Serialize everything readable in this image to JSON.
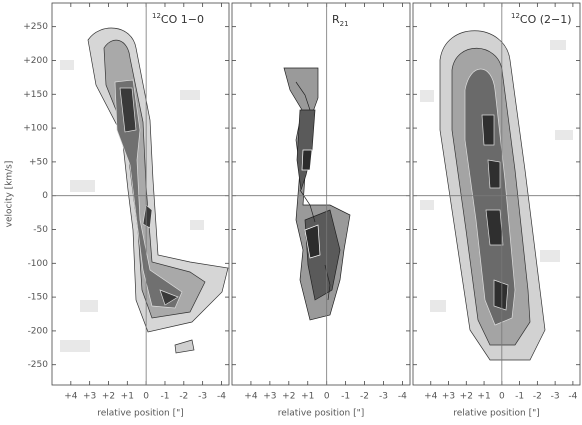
{
  "chart_data": [
    {
      "type": "image",
      "title": {
        "sup": "12",
        "main": "CO 1−0"
      },
      "ylabel": "velocity [km/s]",
      "xlabel": "relative position [\"]",
      "ylim": [
        -280,
        285
      ],
      "yticks": [
        -250,
        -200,
        -150,
        -100,
        -50,
        0,
        {
          "value": 50,
          "label": "+50"
        },
        {
          "value": 100,
          "label": "+100"
        },
        {
          "value": 150,
          "label": "+150"
        },
        {
          "value": 200,
          "label": "+200"
        },
        {
          "value": 250,
          "label": "+250"
        }
      ],
      "xlim": [
        5,
        -4.4
      ],
      "xticks": [
        {
          "value": 4,
          "label": "+4"
        },
        {
          "value": 3,
          "label": "+3"
        },
        {
          "value": 2,
          "label": "+2"
        },
        {
          "value": 1,
          "label": "+1"
        },
        0,
        -1,
        -2,
        -3,
        -4
      ]
    },
    {
      "type": "image",
      "title": {
        "main": "R",
        "sub": "21"
      },
      "xlabel": "relative position [\"]",
      "xlim": [
        5,
        -4.4
      ],
      "xticks": [
        {
          "value": 4,
          "label": "+4"
        },
        {
          "value": 3,
          "label": "+3"
        },
        {
          "value": 2,
          "label": "+2"
        },
        {
          "value": 1,
          "label": "+1"
        },
        0,
        -1,
        -2,
        -3,
        -4
      ]
    },
    {
      "type": "image",
      "title": {
        "sup": "12",
        "main": "CO (2−1)"
      },
      "xlabel": "relative position [\"]",
      "xlim": [
        5,
        -4.4
      ],
      "xticks": [
        {
          "value": 4,
          "label": "+4"
        },
        {
          "value": 3,
          "label": "+3"
        },
        {
          "value": 2,
          "label": "+2"
        },
        {
          "value": 1,
          "label": "+1"
        },
        0,
        -1,
        -2,
        -3,
        -4
      ]
    }
  ]
}
